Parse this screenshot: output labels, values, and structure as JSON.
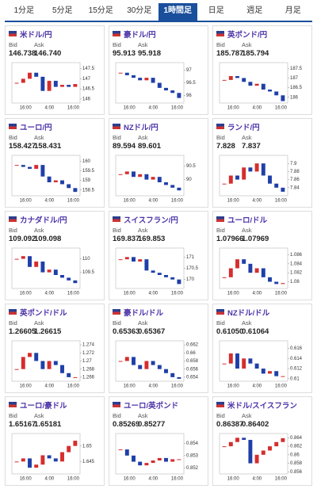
{
  "tabs": [
    {
      "label": "1分足",
      "active": false
    },
    {
      "label": "5分足",
      "active": false
    },
    {
      "label": "15分足",
      "active": false
    },
    {
      "label": "30分足",
      "active": false
    },
    {
      "label": "1時間足",
      "active": true
    },
    {
      "label": "日足",
      "active": false
    },
    {
      "label": "週足",
      "active": false
    },
    {
      "label": "月足",
      "active": false
    }
  ],
  "cards": [
    {
      "name": "米ドル/円",
      "bid_label": "Bid",
      "ask_label": "Ask",
      "bid": "146.738",
      "ask": "146.740",
      "chart": {
        "type": "candlestick",
        "ylim": [
          145.8,
          147.8
        ],
        "yticks": [
          147.5,
          147,
          146.5,
          146
        ],
        "x_labels": [
          "16:00",
          "4:00",
          "16:00"
        ],
        "values": [
          146.8,
          147.0,
          147.3,
          147.1,
          146.4,
          146.9,
          146.6,
          146.7,
          146.6,
          146.74
        ]
      }
    },
    {
      "name": "豪ドル/円",
      "bid_label": "Bid",
      "ask_label": "Ask",
      "bid": "95.913",
      "ask": "95.918",
      "chart": {
        "type": "candlestick",
        "ylim": [
          95.7,
          97.3
        ],
        "yticks": [
          97,
          96.5,
          96
        ],
        "x_labels": [
          "16:00",
          "4:00",
          "16:00"
        ],
        "values": [
          96.9,
          96.8,
          96.7,
          96.6,
          96.7,
          96.5,
          96.3,
          96.2,
          96.1,
          95.9
        ]
      }
    },
    {
      "name": "英ポンド/円",
      "bid_label": "Bid",
      "ask_label": "Ask",
      "bid": "185.787",
      "ask": "185.794",
      "chart": {
        "type": "candlestick",
        "ylim": [
          185.7,
          187.8
        ],
        "yticks": [
          187.5,
          187,
          186.5,
          186
        ],
        "x_labels": [
          "16:00",
          "4:00",
          "16:00"
        ],
        "values": [
          186.9,
          187.1,
          187.0,
          186.8,
          186.6,
          186.7,
          186.4,
          186.3,
          186.1,
          185.8
        ]
      }
    },
    {
      "name": "ユーロ/円",
      "bid_label": "Bid",
      "ask_label": "Ask",
      "bid": "158.427",
      "ask": "158.431",
      "chart": {
        "type": "candlestick",
        "ylim": [
          158.2,
          160.3
        ],
        "yticks": [
          160,
          159.5,
          159,
          158.5
        ],
        "x_labels": [
          "16:00",
          "4:00",
          "16:00"
        ],
        "values": [
          159.8,
          159.7,
          159.6,
          159.8,
          159.2,
          158.9,
          159.0,
          158.8,
          158.6,
          158.4
        ]
      }
    },
    {
      "name": "NZドル/円",
      "bid_label": "Bid",
      "ask_label": "Ask",
      "bid": "89.594",
      "ask": "89.601",
      "chart": {
        "type": "candlestick",
        "ylim": [
          89.4,
          90.9
        ],
        "yticks": [
          90.5,
          90
        ],
        "x_labels": [
          "16:00",
          "4:00",
          "16:00"
        ],
        "values": [
          90.2,
          90.3,
          90.1,
          90.2,
          90.0,
          90.1,
          89.9,
          89.8,
          89.7,
          89.6
        ]
      }
    },
    {
      "name": "ランド/円",
      "bid_label": "Bid",
      "ask_label": "Ask",
      "bid": "7.828",
      "ask": "7.837",
      "chart": {
        "type": "candlestick",
        "ylim": [
          7.82,
          7.92
        ],
        "yticks": [
          7.9,
          7.88,
          7.86,
          7.84
        ],
        "x_labels": [
          "16:00",
          "4:00",
          "16:00"
        ],
        "values": [
          7.85,
          7.87,
          7.86,
          7.89,
          7.88,
          7.9,
          7.87,
          7.85,
          7.84,
          7.83
        ]
      }
    },
    {
      "name": "カナダドル/円",
      "bid_label": "Bid",
      "ask_label": "Ask",
      "bid": "109.092",
      "ask": "109.098",
      "chart": {
        "type": "candlestick",
        "ylim": [
          108.9,
          110.4
        ],
        "yticks": [
          110,
          109.5
        ],
        "x_labels": [
          "16:00",
          "4:00",
          "16:00"
        ],
        "values": [
          110.0,
          110.1,
          109.7,
          109.9,
          109.5,
          109.6,
          109.4,
          109.3,
          109.2,
          109.1
        ]
      }
    },
    {
      "name": "スイスフラン/円",
      "bid_label": "Bid",
      "ask_label": "Ask",
      "bid": "169.837",
      "ask": "169.853",
      "chart": {
        "type": "candlestick",
        "ylim": [
          169.6,
          171.4
        ],
        "yticks": [
          171,
          170.5,
          170
        ],
        "x_labels": [
          "16:00",
          "4:00",
          "16:00"
        ],
        "values": [
          170.9,
          171.0,
          170.8,
          170.9,
          170.4,
          170.3,
          170.2,
          170.1,
          170.0,
          169.8
        ]
      }
    },
    {
      "name": "ユーロ/ドル",
      "bid_label": "Bid",
      "ask_label": "Ask",
      "bid": "1.07966",
      "ask": "1.07969",
      "chart": {
        "type": "candlestick",
        "ylim": [
          1.0785,
          1.0875
        ],
        "yticks": [
          1.086,
          1.084,
          1.082,
          1.08
        ],
        "x_labels": [
          "16:00",
          "4:00",
          "16:00"
        ],
        "values": [
          1.081,
          1.083,
          1.085,
          1.084,
          1.082,
          1.083,
          1.081,
          1.08,
          1.0795,
          1.0797
        ]
      }
    },
    {
      "name": "英ポンド/ドル",
      "bid_label": "Bid",
      "ask_label": "Ask",
      "bid": "1.26605",
      "ask": "1.26615",
      "chart": {
        "type": "candlestick",
        "ylim": [
          1.265,
          1.275
        ],
        "yticks": [
          1.274,
          1.272,
          1.27,
          1.268,
          1.266
        ],
        "x_labels": [
          "16:00",
          "4:00",
          "16:00"
        ],
        "values": [
          1.268,
          1.271,
          1.272,
          1.27,
          1.268,
          1.27,
          1.269,
          1.267,
          1.266,
          1.266
        ]
      }
    },
    {
      "name": "豪ドル/ドル",
      "bid_label": "Bid",
      "ask_label": "Ask",
      "bid": "0.65363",
      "ask": "0.65367",
      "chart": {
        "type": "candlestick",
        "ylim": [
          0.653,
          0.663
        ],
        "yticks": [
          0.662,
          0.66,
          0.658,
          0.656,
          0.654
        ],
        "x_labels": [
          "16:00",
          "4:00",
          "16:00"
        ],
        "values": [
          0.658,
          0.659,
          0.657,
          0.656,
          0.658,
          0.657,
          0.656,
          0.655,
          0.654,
          0.6536
        ]
      }
    },
    {
      "name": "NZドル/ドル",
      "bid_label": "Bid",
      "ask_label": "Ask",
      "bid": "0.61050",
      "ask": "0.61064",
      "chart": {
        "type": "candlestick",
        "ylim": [
          0.6095,
          0.6175
        ],
        "yticks": [
          0.616,
          0.614,
          0.612,
          0.61
        ],
        "x_labels": [
          "16:00",
          "4:00",
          "16:00"
        ],
        "values": [
          0.613,
          0.615,
          0.612,
          0.614,
          0.613,
          0.612,
          0.611,
          0.6115,
          0.6105,
          0.6105
        ]
      }
    },
    {
      "name": "ユーロ/豪ドル",
      "bid_label": "Bid",
      "ask_label": "Ask",
      "bid": "1.65167",
      "ask": "1.65181",
      "chart": {
        "type": "candlestick",
        "ylim": [
          1.641,
          1.654
        ],
        "yticks": [
          1.65,
          1.645
        ],
        "x_labels": [
          "16:00",
          "4:00",
          "16:00"
        ],
        "values": [
          1.645,
          1.646,
          1.643,
          1.644,
          1.647,
          1.646,
          1.645,
          1.648,
          1.65,
          1.6517
        ]
      }
    },
    {
      "name": "ユーロ/英ポンド",
      "bid_label": "Bid",
      "ask_label": "Ask",
      "bid": "0.85269",
      "ask": "0.85277",
      "chart": {
        "type": "candlestick",
        "ylim": [
          0.8515,
          0.8548
        ],
        "yticks": [
          0.854,
          0.853,
          0.852
        ],
        "x_labels": [
          "16:00",
          "4:00",
          "16:00"
        ],
        "values": [
          0.8535,
          0.853,
          0.8525,
          0.8522,
          0.8524,
          0.8526,
          0.8528,
          0.8525,
          0.8527,
          0.8527
        ]
      }
    },
    {
      "name": "米ドル/スイスフラン",
      "bid_label": "Bid",
      "ask_label": "Ask",
      "bid": "0.86387",
      "ask": "0.86402",
      "chart": {
        "type": "candlestick",
        "ylim": [
          0.8555,
          0.865
        ],
        "yticks": [
          0.864,
          0.862,
          0.86,
          0.858,
          0.856
        ],
        "x_labels": [
          "16:00",
          "4:00",
          "16:00"
        ],
        "values": [
          0.862,
          0.863,
          0.864,
          0.8635,
          0.858,
          0.86,
          0.861,
          0.862,
          0.863,
          0.8639
        ]
      }
    }
  ]
}
